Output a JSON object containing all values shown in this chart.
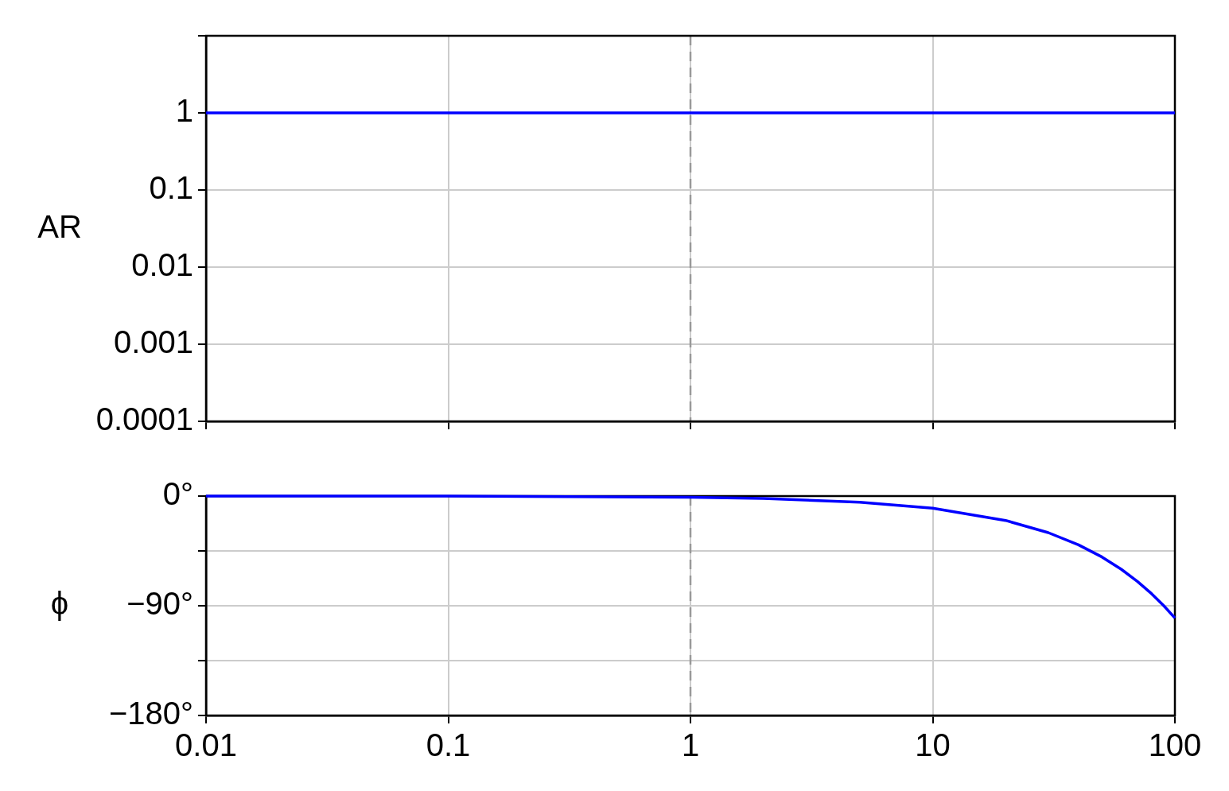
{
  "chart_data": [
    {
      "type": "line",
      "ylabel": "AR",
      "log": "xy",
      "grid": true,
      "tick_labels": "y",
      "xlim": [
        0.01,
        100
      ],
      "xticks": [
        0.01,
        0.1,
        1,
        10,
        100
      ],
      "ylim": [
        0.0001,
        10
      ],
      "yticks": [
        0.0001,
        0.001,
        0.01,
        0.1,
        1,
        {
          "value": 10,
          "label": null
        }
      ],
      "series": [
        {
          "color": "#0000ff",
          "x": [
            0.01,
            0.1,
            1,
            10,
            100
          ],
          "values": [
            1,
            1,
            1,
            1,
            1
          ]
        }
      ],
      "ref_lines": [
        {
          "axis": "x",
          "value": 1,
          "color": "#999999",
          "line_style": "dashed"
        }
      ]
    },
    {
      "type": "line",
      "ylabel": "ϕ",
      "log": "x",
      "grid": true,
      "xlim": [
        0.01,
        100
      ],
      "xticks": [
        0.01,
        0.1,
        1,
        10,
        100
      ],
      "ylim": [
        -180,
        0
      ],
      "yticks": [
        {
          "value": -180,
          "label": "−180°"
        },
        {
          "value": -135,
          "label": null
        },
        {
          "value": -90,
          "label": "−90°"
        },
        {
          "value": -45,
          "label": null
        },
        {
          "value": 0,
          "label": "0°"
        }
      ],
      "series": [
        {
          "color": "#0000ff",
          "x": [
            0.01,
            0.1,
            1,
            2,
            5,
            10,
            20,
            30,
            40,
            50,
            60,
            70,
            80,
            90,
            100
          ],
          "values": [
            0,
            0,
            -1,
            -2,
            -5,
            -10,
            -20,
            -30,
            -40,
            -50,
            -60,
            -70,
            -80,
            -90,
            -100
          ]
        }
      ],
      "ref_lines": [
        {
          "axis": "x",
          "value": 1,
          "color": "#999999",
          "line_style": "dashed"
        }
      ]
    }
  ]
}
